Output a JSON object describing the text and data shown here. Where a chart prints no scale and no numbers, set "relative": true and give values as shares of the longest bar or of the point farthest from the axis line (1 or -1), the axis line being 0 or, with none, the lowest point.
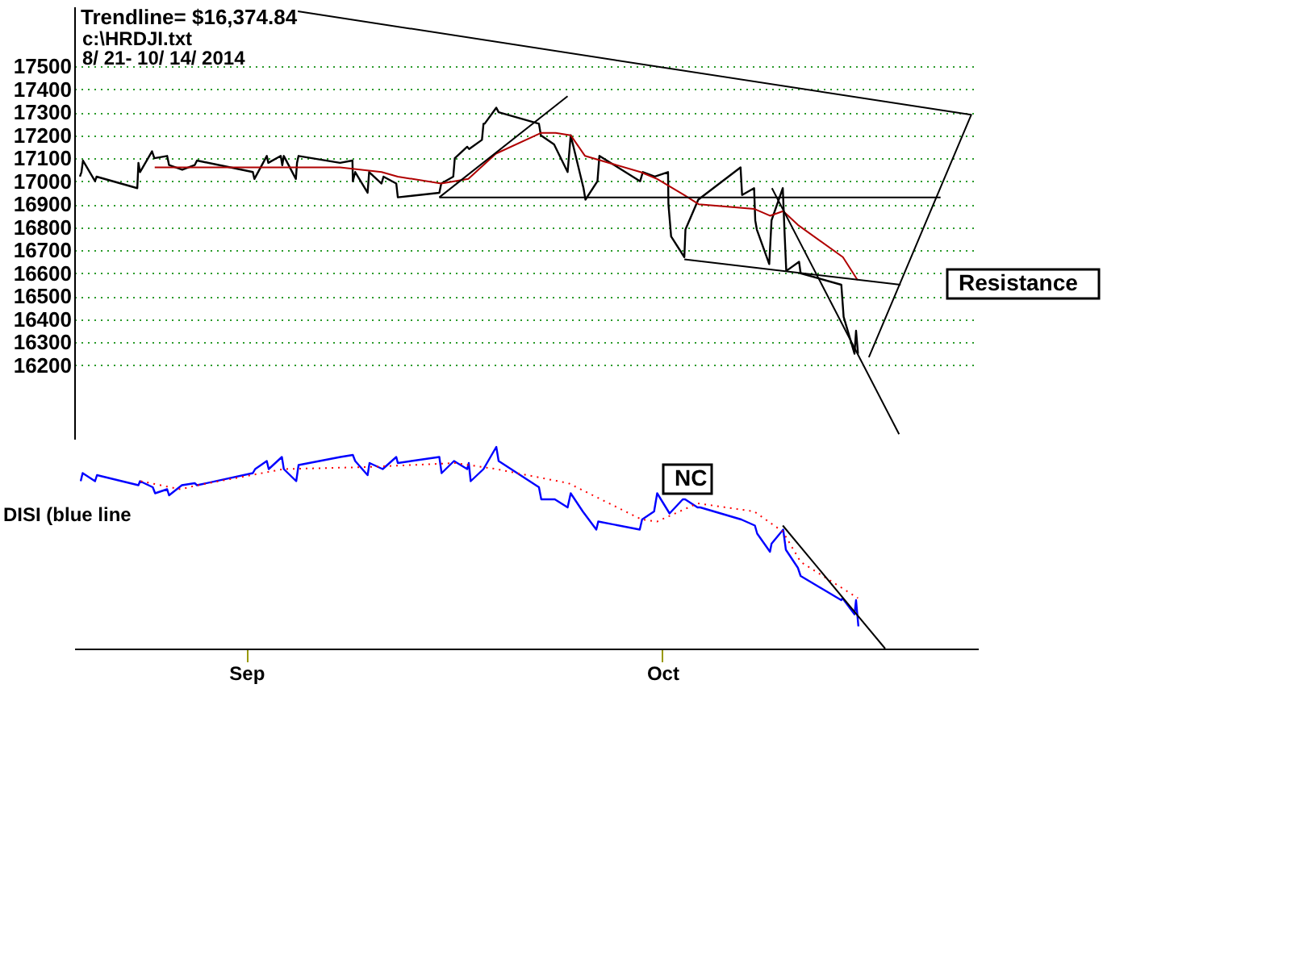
{
  "chart_data": [
    {
      "type": "line",
      "title": "Trendline= $16,374.84",
      "annotations": [
        "c:\\HRDJI.txt",
        "8/ 21- 10/ 14/ 2014",
        "Resistance"
      ],
      "xlim": [
        "2014-08-21",
        "2014-10-23"
      ],
      "ylim": [
        15880,
        17760
      ],
      "yticks": [
        16200,
        16300,
        16400,
        16500,
        16600,
        16700,
        16800,
        16900,
        17000,
        17100,
        17200,
        17300,
        17400,
        17500
      ],
      "grid": "y",
      "tick_labels": "y",
      "series": [
        {
          "color": "#000000",
          "x": [
            "2014-08-21T09:30",
            "2014-08-21T12:05",
            "2014-08-21T14:40",
            "2014-08-22T10:50",
            "2014-08-22T13:25",
            "2014-08-25T09:30",
            "2014-08-25T11:25",
            "2014-08-25T14:05",
            "2014-08-26T10:10",
            "2014-08-26T14:05",
            "2014-08-27T11:25",
            "2014-08-27T14:40",
            "2014-08-28T12:45",
            "2014-08-29T09:30",
            "2014-08-29T13:25",
            "2014-09-02T10:50",
            "2014-09-02T13:25",
            "2014-09-03T10:10",
            "2014-09-03T12:45",
            "2014-09-04T09:30",
            "2014-09-04T12:05",
            "2014-09-04T14:40",
            "2014-09-05T10:50",
            "2014-09-05T12:45",
            "2014-09-05T15:20",
            "2014-09-08T12:45",
            "2014-09-09T09:30",
            "2014-09-09T10:10",
            "2014-09-09T14:05",
            "2014-09-10T10:50",
            "2014-09-10T13:25",
            "2014-09-11T10:10",
            "2014-09-11T13:25",
            "2014-09-12T10:50",
            "2014-09-12T13:25",
            "2014-09-15T10:50",
            "2014-09-15T14:05",
            "2014-09-16T10:10",
            "2014-09-16T12:45",
            "2014-09-17T09:30",
            "2014-09-17T12:45",
            "2014-09-18T10:10",
            "2014-09-18T12:45",
            "2014-09-18T14:40",
            "2014-09-19T10:10",
            "2014-09-19T14:05",
            "2014-09-22T09:30",
            "2014-09-22T12:45",
            "2014-09-23T10:50",
            "2014-09-24T09:30",
            "2014-09-24T14:40",
            "2014-09-25T12:05",
            "2014-09-25T15:20",
            "2014-09-26T11:25",
            "2014-09-26T14:40",
            "2014-09-29T10:50",
            "2014-09-29T15:20",
            "2014-09-30T11:25",
            "2014-10-01T09:30",
            "2014-10-01T10:10",
            "2014-10-01T14:40",
            "2014-10-02T12:45",
            "2014-10-02T14:40",
            "2014-10-03T12:05",
            "2014-10-06T10:50",
            "2014-10-06T13:25",
            "2014-10-07T09:30",
            "2014-10-07T11:25",
            "2014-10-07T14:05",
            "2014-10-08T10:50",
            "2014-10-08T14:40",
            "2014-10-09T09:30",
            "2014-10-09T12:45",
            "2014-10-09T15:20",
            "2014-10-10T12:45",
            "2014-10-10T15:20",
            "2014-10-13T11:25",
            "2014-10-13T15:20",
            "2014-10-14T09:30",
            "2014-10-14T12:05",
            "2014-10-14T15:20"
          ],
          "values": [
            17020,
            17040,
            17090,
            17000,
            17020,
            16970,
            17080,
            17040,
            17130,
            17100,
            17110,
            17070,
            17050,
            17070,
            17090,
            17040,
            17010,
            17110,
            17080,
            17110,
            17070,
            17110,
            17010,
            17080,
            17110,
            17080,
            17090,
            17000,
            17040,
            16950,
            17040,
            16990,
            17020,
            16990,
            16930,
            16950,
            16990,
            17020,
            17100,
            17150,
            17140,
            17180,
            17250,
            17250,
            17320,
            17300,
            17250,
            17200,
            17160,
            17040,
            17200,
            16970,
            16920,
            17000,
            17110,
            17000,
            17040,
            17020,
            17040,
            16900,
            16760,
            16670,
            16790,
            16920,
            17060,
            16940,
            16970,
            16830,
            16790,
            16640,
            16830,
            16970,
            16760,
            16610,
            16650,
            16600,
            16550,
            16410,
            16250,
            16350,
            16250
          ]
        },
        {
          "color": "#b00000",
          "x": [
            "2014-08-26T14:40",
            "2014-08-29T14:40",
            "2014-09-08T12:45",
            "2014-09-11T10:10",
            "2014-09-12T13:25",
            "2014-09-15T14:05",
            "2014-09-17T11:25",
            "2014-09-19T09:30",
            "2014-09-22T12:45",
            "2014-09-23T13:25",
            "2014-09-24T14:40",
            "2014-09-25T14:40",
            "2014-09-29T11:25",
            "2014-09-30T15:20",
            "2014-10-02T12:45",
            "2014-10-03T12:45",
            "2014-10-07T09:30",
            "2014-10-08T12:05",
            "2014-10-09T10:10",
            "2014-10-10T10:50",
            "2014-10-13T14:05",
            "2014-10-14T14:40"
          ],
          "values": [
            17060,
            17060,
            17060,
            17040,
            17020,
            16990,
            17010,
            17120,
            17210,
            17210,
            17200,
            17110,
            17040,
            17010,
            16940,
            16900,
            16880,
            16850,
            16870,
            16810,
            16670,
            16570
          ]
        },
        {
          "color": "#000000",
          "x": [
            "2014-09-15T10:50",
            "2014-09-24T09:30"
          ],
          "values": [
            16930,
            17370
          ]
        },
        {
          "color": "#000000",
          "x": [
            "2014-09-15T10:50",
            "2014-10-20T09:30"
          ],
          "values": [
            16930,
            16930
          ]
        },
        {
          "color": "#000000",
          "x": [
            "2014-10-02T12:45",
            "2014-10-17T14:40"
          ],
          "values": [
            16660,
            16550
          ]
        },
        {
          "color": "#000000",
          "x": [
            "2014-10-08T15:20",
            "2014-10-17T12:05"
          ],
          "values": [
            16970,
            15900
          ]
        },
        {
          "color": "#000000",
          "x": [
            "2014-09-05T14:05",
            "2014-10-22T12:45",
            "2014-10-15T09:30"
          ],
          "values": [
            17739,
            17289,
            16235
          ]
        }
      ]
    },
    {
      "type": "line",
      "ylabel": "DISI (blue line",
      "annotations": [
        "NC"
      ],
      "relative": true,
      "xlim": [
        "2014-08-21",
        "2014-10-23"
      ],
      "xticks": [
        {
          "value": "2014-09-02",
          "label": "Sep"
        },
        {
          "value": "2014-10-01",
          "label": "Oct"
        }
      ],
      "tick_labels": "x",
      "series": [
        {
          "color": "#0000ff",
          "x": [
            "2014-08-21T10:50",
            "2014-08-21T14:05",
            "2014-08-22T10:50",
            "2014-08-22T14:05",
            "2014-08-25T11:25",
            "2014-08-25T14:05",
            "2014-08-26T11:25",
            "2014-08-26T15:20",
            "2014-08-27T11:25",
            "2014-08-27T14:40",
            "2014-08-28T12:05",
            "2014-08-29T09:30",
            "2014-08-29T13:25",
            "2014-09-02T10:50",
            "2014-09-02T14:40",
            "2014-09-03T10:10",
            "2014-09-03T13:25",
            "2014-09-04T11:25",
            "2014-09-04T14:40",
            "2014-09-05T11:25",
            "2014-09-05T15:20",
            "2014-09-08T13:25",
            "2014-09-09T10:10",
            "2014-09-09T14:05",
            "2014-09-10T10:50",
            "2014-09-10T14:05",
            "2014-09-11T12:05",
            "2014-09-12T10:50",
            "2014-09-12T13:25",
            "2014-09-15T10:50",
            "2014-09-15T14:40",
            "2014-09-16T11:25",
            "2014-09-17T09:30",
            "2014-09-17T12:05",
            "2014-09-17T15:20",
            "2014-09-18T12:45",
            "2014-09-19T10:10",
            "2014-09-19T14:05",
            "2014-09-22T09:30",
            "2014-09-22T13:25",
            "2014-09-23T12:05",
            "2014-09-24T09:30",
            "2014-09-24T14:40",
            "2014-09-25T10:50",
            "2014-09-26T09:30",
            "2014-09-26T12:45",
            "2014-09-29T10:10",
            "2014-09-29T14:05",
            "2014-09-30T10:10",
            "2014-09-30T15:20",
            "2014-10-01T12:05",
            "2014-10-02T10:10",
            "2014-10-02T14:05",
            "2014-10-03T10:50",
            "2014-10-03T15:20",
            "2014-10-06T12:05",
            "2014-10-07T10:50",
            "2014-10-07T14:40",
            "2014-10-08T12:05",
            "2014-10-08T14:40",
            "2014-10-09T10:10",
            "2014-10-09T14:40",
            "2014-10-10T10:50",
            "2014-10-10T15:20",
            "2014-10-13T11:25",
            "2014-10-13T13:25",
            "2014-10-14T09:30",
            "2014-10-14T12:05",
            "2014-10-14T16:00"
          ],
          "values": [
            0.83,
            0.87,
            0.83,
            0.86,
            0.81,
            0.83,
            0.8,
            0.77,
            0.79,
            0.76,
            0.81,
            0.82,
            0.81,
            0.87,
            0.89,
            0.93,
            0.89,
            0.95,
            0.89,
            0.83,
            0.91,
            0.95,
            0.96,
            0.93,
            0.86,
            0.92,
            0.89,
            0.95,
            0.92,
            0.95,
            0.87,
            0.93,
            0.89,
            0.92,
            0.83,
            0.89,
            1.0,
            0.93,
            0.8,
            0.74,
            0.74,
            0.7,
            0.77,
            0.68,
            0.59,
            0.63,
            0.59,
            0.64,
            0.68,
            0.77,
            0.67,
            0.74,
            0.74,
            0.7,
            0.7,
            0.64,
            0.61,
            0.57,
            0.48,
            0.52,
            0.59,
            0.49,
            0.4,
            0.36,
            0.24,
            0.25,
            0.17,
            0.24,
            0.11
          ]
        },
        {
          "color": "#ff0000",
          "line_style": "dotted",
          "x": [
            "2014-08-25T15:20",
            "2014-08-28T09:30",
            "2014-08-29T14:40",
            "2014-09-04T14:05",
            "2014-09-10T09:30",
            "2014-09-16T14:05",
            "2014-09-19T10:10",
            "2014-09-24T10:50",
            "2014-09-29T13:25",
            "2014-09-30T15:20",
            "2014-10-03T10:50",
            "2014-10-07T09:30",
            "2014-10-09T09:30",
            "2014-10-10T15:20",
            "2014-10-14T15:20"
          ],
          "values": [
            0.83,
            0.79,
            0.81,
            0.89,
            0.9,
            0.92,
            0.89,
            0.82,
            0.64,
            0.63,
            0.72,
            0.68,
            0.58,
            0.43,
            0.25
          ]
        },
        {
          "color": "#000000",
          "x": [
            "2014-10-09T09:30",
            "2014-10-16T12:45"
          ],
          "values": [
            0.61,
            0
          ]
        }
      ]
    }
  ]
}
